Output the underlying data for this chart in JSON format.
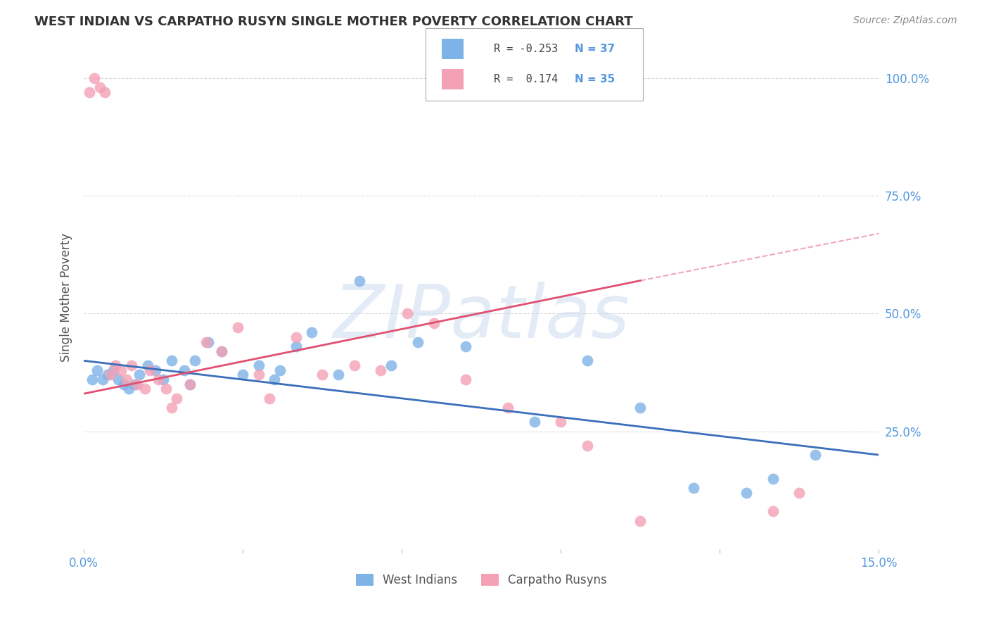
{
  "title": "WEST INDIAN VS CARPATHO RUSYN SINGLE MOTHER POVERTY CORRELATION CHART",
  "source": "Source: ZipAtlas.com",
  "ylabel": "Single Mother Poverty",
  "xlim": [
    0.0,
    15.0
  ],
  "ylim": [
    0.0,
    107.0
  ],
  "yticks": [
    25,
    50,
    75,
    100
  ],
  "ytick_labels": [
    "25.0%",
    "50.0%",
    "75.0%",
    "100.0%"
  ],
  "xtick_labels": [
    "0.0%",
    "",
    "",
    "",
    "",
    "15.0%"
  ],
  "grid_color": "#cccccc",
  "bg_color": "#ffffff",
  "watermark": "ZIPatlas",
  "wi_color": "#7eb3e8",
  "cr_color": "#f4a0b5",
  "wi_line_color": "#3a6fba",
  "cr_line_color": "#e05070",
  "legend_R_blue": "-0.253",
  "legend_N_blue": "37",
  "legend_R_pink": " 0.174",
  "legend_N_pink": "35",
  "wi_x": [
    0.15,
    0.25,
    0.35,
    0.45,
    0.55,
    0.65,
    0.75,
    0.85,
    0.95,
    1.05,
    1.2,
    1.35,
    1.5,
    1.65,
    1.9,
    2.1,
    2.35,
    2.6,
    3.0,
    3.3,
    3.6,
    4.0,
    4.3,
    4.8,
    5.2,
    5.8,
    6.3,
    7.2,
    8.5,
    9.5,
    10.5,
    11.5,
    12.5,
    13.0,
    13.8,
    2.0,
    3.7
  ],
  "wi_y": [
    36,
    38,
    36,
    37,
    38,
    36,
    35,
    34,
    35,
    37,
    39,
    38,
    36,
    40,
    38,
    40,
    44,
    42,
    37,
    39,
    36,
    43,
    46,
    37,
    57,
    39,
    44,
    43,
    27,
    40,
    30,
    13,
    12,
    15,
    20,
    35,
    38
  ],
  "cr_x": [
    0.1,
    0.2,
    0.3,
    0.4,
    0.5,
    0.6,
    0.7,
    0.8,
    0.9,
    1.0,
    1.15,
    1.25,
    1.4,
    1.55,
    1.65,
    1.75,
    2.0,
    2.3,
    2.6,
    2.9,
    3.3,
    4.0,
    4.5,
    5.1,
    5.6,
    6.1,
    6.6,
    7.2,
    8.0,
    9.0,
    9.5,
    10.5,
    13.0,
    13.5,
    3.5
  ],
  "cr_y": [
    97,
    100,
    98,
    97,
    37,
    39,
    38,
    36,
    39,
    35,
    34,
    38,
    36,
    34,
    30,
    32,
    35,
    44,
    42,
    47,
    37,
    45,
    37,
    39,
    38,
    50,
    48,
    36,
    30,
    27,
    22,
    6,
    8,
    12,
    32
  ],
  "wi_line_x0": 0.0,
  "wi_line_y0": 40.0,
  "wi_line_x1": 15.0,
  "wi_line_y1": 20.0,
  "cr_line_x0": 0.0,
  "cr_line_y0": 33.0,
  "cr_line_x1": 10.5,
  "cr_line_y1": 57.0,
  "cr_dash_x0": 10.5,
  "cr_dash_y0": 57.0,
  "cr_dash_x1": 15.0,
  "cr_dash_y1": 67.0
}
